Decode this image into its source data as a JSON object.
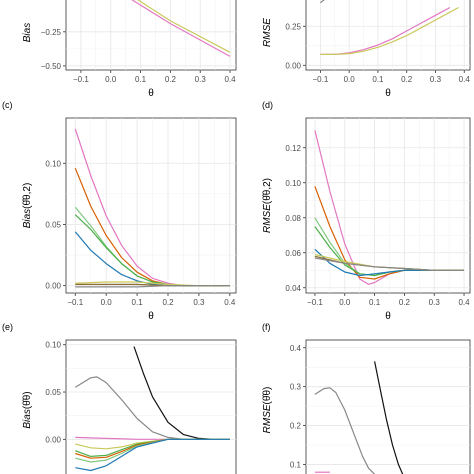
{
  "colors": [
    "#e377c2",
    "#d95f02",
    "#7fc97f",
    "#1f78b4",
    "#c9c95a",
    "#4daf4a",
    "#8c6d31",
    "#888888",
    "#111111"
  ],
  "chart_data": [
    {
      "panel_label": "",
      "type": "line",
      "xlabel": "θ",
      "ylabel": "Bias",
      "xlim": [
        -0.15,
        0.42
      ],
      "ylim": [
        -0.53,
        0.02
      ],
      "xticks": [
        -0.1,
        0.0,
        0.1,
        0.2,
        0.3,
        0.4
      ],
      "xtick_labels": [
        "−0.1",
        "0.0",
        "0.1",
        "0.2",
        "0.3",
        "0.4"
      ],
      "yticks": [
        -0.25,
        -0.5
      ],
      "ytick_labels": [
        "−0.25",
        "−0.50"
      ],
      "grid": true,
      "legend": "none",
      "series": [
        {
          "color_index": 0,
          "x": [
            0.06,
            0.2,
            0.4
          ],
          "y": [
            0.0,
            -0.19,
            -0.43
          ]
        },
        {
          "color_index": 4,
          "x": [
            0.08,
            0.2,
            0.4
          ],
          "y": [
            0.0,
            -0.17,
            -0.4
          ]
        }
      ]
    },
    {
      "panel_label": "",
      "type": "line",
      "xlabel": "θ",
      "ylabel": "RMSE",
      "xlim": [
        -0.15,
        0.42
      ],
      "ylim": [
        -0.03,
        0.45
      ],
      "xticks": [
        -0.1,
        0.0,
        0.1,
        0.2,
        0.3,
        0.4
      ],
      "xtick_labels": [
        "−0.1",
        "0.0",
        "0.1",
        "0.2",
        "0.3",
        "0.4"
      ],
      "yticks": [
        0.0,
        0.25
      ],
      "ytick_labels": [
        "0.00",
        "0.25"
      ],
      "grid": true,
      "legend": "none",
      "series": [
        {
          "color_index": 0,
          "x": [
            -0.1,
            -0.05,
            0.0,
            0.05,
            0.1,
            0.15,
            0.2,
            0.25,
            0.3,
            0.35
          ],
          "y": [
            0.07,
            0.07,
            0.08,
            0.1,
            0.13,
            0.17,
            0.22,
            0.27,
            0.32,
            0.37
          ]
        },
        {
          "color_index": 4,
          "x": [
            -0.1,
            -0.05,
            0.0,
            0.05,
            0.1,
            0.15,
            0.2,
            0.25,
            0.3,
            0.35,
            0.38
          ],
          "y": [
            0.07,
            0.07,
            0.075,
            0.09,
            0.115,
            0.15,
            0.19,
            0.24,
            0.29,
            0.34,
            0.37
          ]
        },
        {
          "color_index": 7,
          "x": [
            -0.1,
            -0.08
          ],
          "y": [
            0.4,
            0.43
          ]
        }
      ]
    },
    {
      "panel_label": "(c)",
      "type": "line",
      "xlabel": "θ",
      "ylabel": "Bias",
      "ylabel_arg": "(θ̂θ,2)",
      "xlim": [
        -0.13,
        0.42
      ],
      "ylim": [
        -0.006,
        0.137
      ],
      "xticks": [
        -0.1,
        0.0,
        0.1,
        0.2,
        0.3,
        0.4
      ],
      "xtick_labels": [
        "−0.1",
        "0.0",
        "0.1",
        "0.2",
        "0.3",
        "0.4"
      ],
      "yticks": [
        0.0,
        0.05,
        0.1
      ],
      "ytick_labels": [
        "0.00",
        "0.05",
        "0.10"
      ],
      "grid": true,
      "legend": "none",
      "series": [
        {
          "color_index": 0,
          "x": [
            -0.1,
            -0.05,
            0.0,
            0.05,
            0.1,
            0.15,
            0.2,
            0.25,
            0.3,
            0.35,
            0.4
          ],
          "y": [
            0.128,
            0.09,
            0.057,
            0.033,
            0.016,
            0.006,
            0.002,
            0.0,
            0.0,
            0.0,
            0.0
          ]
        },
        {
          "color_index": 1,
          "x": [
            -0.1,
            -0.05,
            0.0,
            0.05,
            0.1,
            0.15,
            0.2,
            0.25,
            0.3,
            0.35,
            0.4
          ],
          "y": [
            0.096,
            0.065,
            0.041,
            0.023,
            0.011,
            0.004,
            0.001,
            0.0,
            0.0,
            0.0,
            0.0
          ]
        },
        {
          "color_index": 2,
          "x": [
            -0.1,
            -0.05,
            0.0,
            0.05,
            0.1,
            0.15,
            0.2,
            0.25,
            0.3,
            0.35,
            0.4
          ],
          "y": [
            0.064,
            0.049,
            0.032,
            0.018,
            0.008,
            0.003,
            0.001,
            0.0,
            0.0,
            0.0,
            0.0
          ]
        },
        {
          "color_index": 5,
          "x": [
            -0.1,
            -0.05,
            0.0,
            0.05,
            0.1,
            0.15,
            0.2,
            0.25,
            0.3,
            0.35,
            0.4
          ],
          "y": [
            0.058,
            0.046,
            0.031,
            0.018,
            0.008,
            0.003,
            0.001,
            0.0,
            0.0,
            0.0,
            0.0
          ]
        },
        {
          "color_index": 3,
          "x": [
            -0.1,
            -0.05,
            0.0,
            0.05,
            0.1,
            0.15,
            0.2,
            0.25,
            0.3,
            0.35,
            0.4
          ],
          "y": [
            0.044,
            0.029,
            0.018,
            0.009,
            0.004,
            0.001,
            0.0,
            0.0,
            0.0,
            0.0,
            0.0
          ]
        },
        {
          "color_index": 4,
          "x": [
            -0.1,
            0.0,
            0.1,
            0.2,
            0.3,
            0.4
          ],
          "y": [
            0.002,
            0.003,
            0.003,
            0.001,
            0.0,
            0.0
          ]
        },
        {
          "color_index": 6,
          "x": [
            -0.1,
            0.0,
            0.1,
            0.2,
            0.3,
            0.4
          ],
          "y": [
            0.001,
            0.001,
            0.001,
            0.0,
            0.0,
            0.0
          ]
        },
        {
          "color_index": 7,
          "x": [
            -0.1,
            0.0,
            0.1,
            0.2,
            0.3,
            0.4
          ],
          "y": [
            -0.001,
            -0.001,
            -0.001,
            0.0,
            0.0,
            0.0
          ]
        }
      ]
    },
    {
      "panel_label": "(d)",
      "type": "line",
      "xlabel": "θ",
      "ylabel": "RMSE",
      "ylabel_arg": "(θ̂θ,2)",
      "xlim": [
        -0.13,
        0.42
      ],
      "ylim": [
        0.037,
        0.137
      ],
      "xticks": [
        -0.1,
        0.0,
        0.1,
        0.2,
        0.3,
        0.4
      ],
      "xtick_labels": [
        "−0.1",
        "0.0",
        "0.1",
        "0.2",
        "0.3",
        "0.4"
      ],
      "yticks": [
        0.04,
        0.06,
        0.08,
        0.1,
        0.12
      ],
      "ytick_labels": [
        "0.04",
        "0.06",
        "0.08",
        "0.10",
        "0.12"
      ],
      "grid": true,
      "legend": "none",
      "series": [
        {
          "color_index": 0,
          "x": [
            -0.1,
            -0.05,
            0.0,
            0.05,
            0.08,
            0.1,
            0.15,
            0.2,
            0.3,
            0.4
          ],
          "y": [
            0.13,
            0.095,
            0.065,
            0.045,
            0.042,
            0.043,
            0.048,
            0.05,
            0.05,
            0.05
          ]
        },
        {
          "color_index": 1,
          "x": [
            -0.1,
            -0.05,
            0.0,
            0.05,
            0.1,
            0.15,
            0.2,
            0.3,
            0.4
          ],
          "y": [
            0.098,
            0.075,
            0.056,
            0.046,
            0.045,
            0.048,
            0.05,
            0.05,
            0.05
          ]
        },
        {
          "color_index": 2,
          "x": [
            -0.1,
            -0.05,
            0.0,
            0.05,
            0.1,
            0.15,
            0.2,
            0.3,
            0.4
          ],
          "y": [
            0.08,
            0.066,
            0.054,
            0.048,
            0.047,
            0.049,
            0.05,
            0.05,
            0.05
          ]
        },
        {
          "color_index": 5,
          "x": [
            -0.1,
            -0.05,
            0.0,
            0.05,
            0.1,
            0.15,
            0.2,
            0.3,
            0.4
          ],
          "y": [
            0.075,
            0.063,
            0.053,
            0.048,
            0.047,
            0.049,
            0.05,
            0.05,
            0.05
          ]
        },
        {
          "color_index": 3,
          "x": [
            -0.1,
            -0.05,
            0.0,
            0.05,
            0.1,
            0.15,
            0.2,
            0.3,
            0.4
          ],
          "y": [
            0.062,
            0.054,
            0.049,
            0.047,
            0.048,
            0.049,
            0.05,
            0.05,
            0.05
          ]
        },
        {
          "color_index": 4,
          "x": [
            -0.1,
            0.0,
            0.1,
            0.2,
            0.3,
            0.4
          ],
          "y": [
            0.059,
            0.055,
            0.052,
            0.051,
            0.05,
            0.05
          ]
        },
        {
          "color_index": 6,
          "x": [
            -0.1,
            0.0,
            0.1,
            0.2,
            0.3,
            0.4
          ],
          "y": [
            0.058,
            0.054,
            0.052,
            0.051,
            0.05,
            0.05
          ]
        },
        {
          "color_index": 7,
          "x": [
            -0.1,
            0.0,
            0.1,
            0.2,
            0.3,
            0.4
          ],
          "y": [
            0.057,
            0.054,
            0.052,
            0.051,
            0.05,
            0.05
          ]
        }
      ]
    },
    {
      "panel_label": "(e)",
      "type": "line",
      "xlabel": "",
      "ylabel": "Bias",
      "ylabel_arg": "(θ̂θ)",
      "xlim": [
        -0.13,
        0.42
      ],
      "ylim": [
        -0.043,
        0.105
      ],
      "xticks": [],
      "xtick_labels": [],
      "yticks": [
        0.0,
        0.05,
        0.1
      ],
      "ytick_labels": [
        "0.00",
        "0.05",
        "0.10"
      ],
      "grid": true,
      "legend": "none",
      "series": [
        {
          "color_index": 7,
          "x": [
            -0.1,
            -0.05,
            -0.03,
            0.0,
            0.05,
            0.1,
            0.15,
            0.2,
            0.25,
            0.3,
            0.35,
            0.4
          ],
          "y": [
            0.055,
            0.065,
            0.066,
            0.06,
            0.042,
            0.022,
            0.008,
            0.002,
            0.0,
            0.0,
            0.0,
            0.0
          ]
        },
        {
          "color_index": 8,
          "x": [
            0.09,
            0.12,
            0.15,
            0.2,
            0.25,
            0.3,
            0.35,
            0.4
          ],
          "y": [
            0.098,
            0.07,
            0.045,
            0.018,
            0.005,
            0.001,
            0.0,
            0.0
          ]
        },
        {
          "color_index": 0,
          "x": [
            -0.1,
            0.0,
            0.1,
            0.2,
            0.3,
            0.4
          ],
          "y": [
            0.002,
            0.001,
            0.0,
            0.0,
            0.0,
            0.0
          ]
        },
        {
          "color_index": 4,
          "x": [
            -0.1,
            -0.05,
            0.0,
            0.05,
            0.1,
            0.2,
            0.3,
            0.4
          ],
          "y": [
            -0.005,
            -0.009,
            -0.01,
            -0.008,
            -0.004,
            0.0,
            0.0,
            0.0
          ]
        },
        {
          "color_index": 5,
          "x": [
            -0.1,
            -0.05,
            0.0,
            0.05,
            0.1,
            0.2,
            0.3,
            0.4
          ],
          "y": [
            -0.012,
            -0.018,
            -0.017,
            -0.011,
            -0.005,
            0.0,
            0.0,
            0.0
          ]
        },
        {
          "color_index": 1,
          "x": [
            -0.1,
            -0.05,
            0.0,
            0.05,
            0.1,
            0.2,
            0.3,
            0.4
          ],
          "y": [
            -0.015,
            -0.02,
            -0.019,
            -0.013,
            -0.006,
            0.0,
            0.0,
            0.0
          ]
        },
        {
          "color_index": 2,
          "x": [
            -0.1,
            -0.05,
            0.0,
            0.05,
            0.1,
            0.2,
            0.3,
            0.4
          ],
          "y": [
            -0.02,
            -0.024,
            -0.022,
            -0.015,
            -0.007,
            0.0,
            0.0,
            0.0
          ]
        },
        {
          "color_index": 3,
          "x": [
            -0.1,
            -0.05,
            0.0,
            0.05,
            0.1,
            0.2,
            0.3,
            0.4
          ],
          "y": [
            -0.03,
            -0.033,
            -0.028,
            -0.018,
            -0.008,
            0.0,
            0.0,
            0.0
          ]
        }
      ]
    },
    {
      "panel_label": "(f)",
      "type": "line",
      "xlabel": "",
      "ylabel": "RMSE",
      "ylabel_arg": "(θ̂θ)",
      "xlim": [
        -0.13,
        0.42
      ],
      "ylim": [
        0.06,
        0.42
      ],
      "xticks": [],
      "xtick_labels": [],
      "yticks": [
        0.1,
        0.2,
        0.3,
        0.4
      ],
      "ytick_labels": [
        "0.1",
        "0.2",
        "0.3",
        "0.4"
      ],
      "grid": true,
      "legend": "none",
      "series": [
        {
          "color_index": 7,
          "x": [
            -0.1,
            -0.07,
            -0.05,
            -0.03,
            0.0,
            0.03,
            0.06,
            0.08,
            0.1
          ],
          "y": [
            0.28,
            0.295,
            0.297,
            0.285,
            0.24,
            0.18,
            0.12,
            0.09,
            0.075
          ]
        },
        {
          "color_index": 8,
          "x": [
            0.1,
            0.12,
            0.14,
            0.16,
            0.18,
            0.2
          ],
          "y": [
            0.365,
            0.29,
            0.215,
            0.15,
            0.1,
            0.065
          ]
        },
        {
          "color_index": 0,
          "x": [
            -0.1,
            -0.05
          ],
          "y": [
            0.08,
            0.08
          ]
        }
      ]
    }
  ]
}
